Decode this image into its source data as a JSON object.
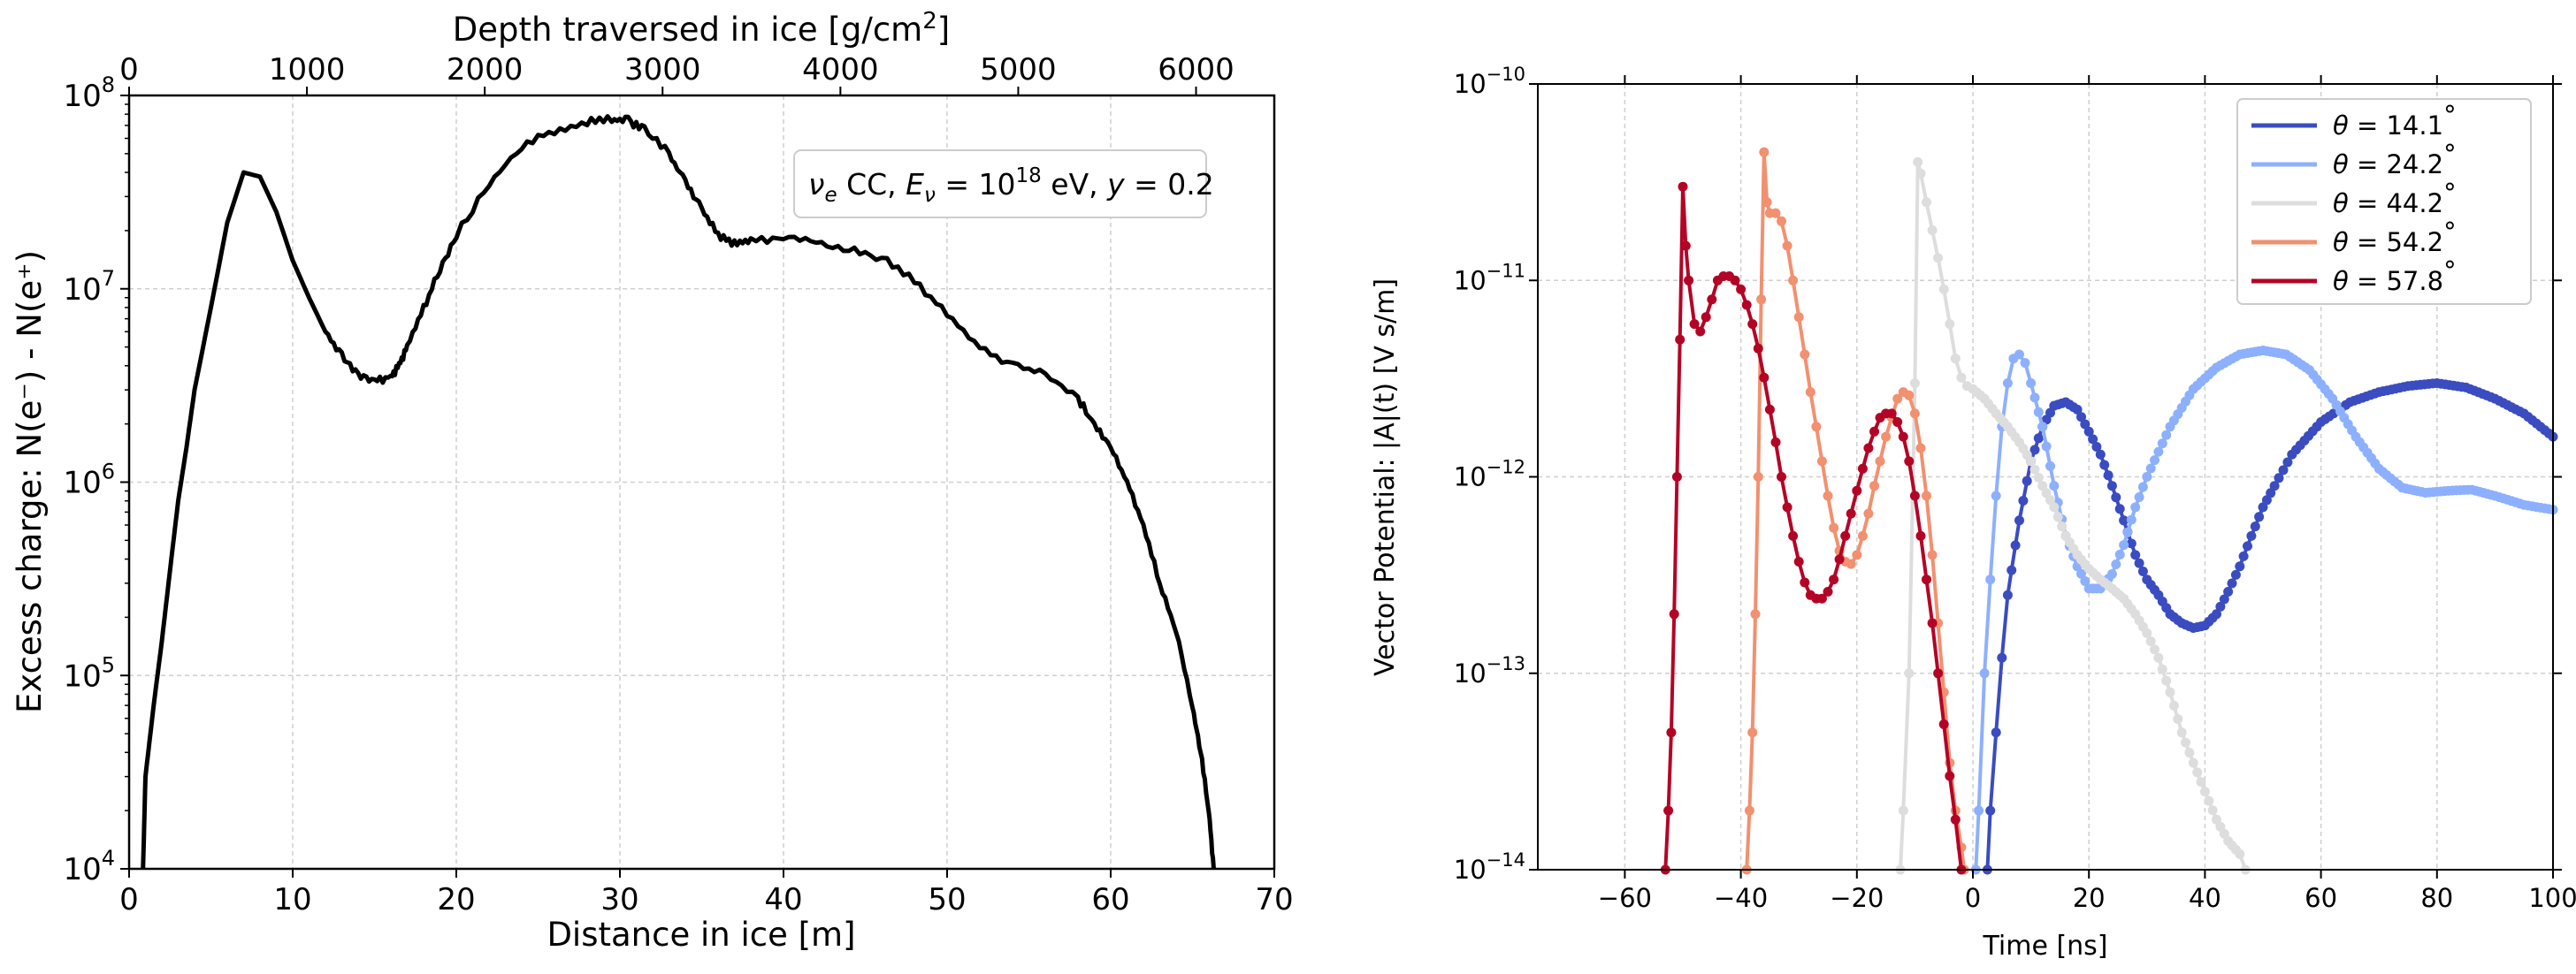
{
  "chart_data": [
    {
      "type": "line",
      "title": "",
      "xlabel": "Distance in ice [m]",
      "ylabel": "Excess charge: N(e⁻) - N(e⁺)",
      "top_xlabel": "Depth traversed in ice [g/cm²]",
      "xlim": [
        0,
        70
      ],
      "ylim": [
        10000,
        100000000
      ],
      "yscale": "log",
      "grid": true,
      "x_ticks": [
        0,
        10,
        20,
        30,
        40,
        50,
        60,
        70
      ],
      "x_tick_labels": [
        "0",
        "10",
        "20",
        "30",
        "40",
        "50",
        "60",
        "70"
      ],
      "y_ticks": [
        10000,
        100000,
        1000000,
        10000000,
        100000000
      ],
      "y_tick_labels": [
        {
          "base": "10",
          "exp": "4"
        },
        {
          "base": "10",
          "exp": "5"
        },
        {
          "base": "10",
          "exp": "6"
        },
        {
          "base": "10",
          "exp": "7"
        },
        {
          "base": "10",
          "exp": "8"
        }
      ],
      "top_ticks_depth": [
        0,
        1000,
        2000,
        3000,
        4000,
        5000,
        6000
      ],
      "top_tick_labels": [
        "0",
        "1000",
        "2000",
        "3000",
        "4000",
        "5000",
        "6000"
      ],
      "depth_per_meter": 92,
      "annotation": {
        "nu": "ν",
        "nu_sub": "e",
        "text1": " CC, ",
        "E": "E",
        "E_sub": "ν",
        "eq": " = 10",
        "eexp": "18",
        "text2": " eV, ",
        "y": "y",
        "text3": " = 0.2"
      },
      "series": [
        {
          "name": "Excess charge",
          "color": "#000000",
          "x": [
            0.85,
            1.0,
            1.5,
            2.0,
            2.5,
            3.0,
            3.5,
            4.0,
            5.0,
            6.0,
            7.0,
            8.0,
            9.0,
            10.0,
            11.0,
            12.0,
            13.0,
            14.0,
            15.0,
            16.0,
            16.5,
            17.0,
            18.0,
            19.0,
            20.0,
            22.0,
            24.0,
            26.0,
            28.0,
            29.5,
            30.5,
            31.5,
            33.0,
            34.0,
            35.0,
            36.0,
            37.0,
            38.0,
            40.0,
            42.0,
            44.0,
            46.0,
            48.0,
            50.0,
            52.0,
            54.0,
            56.0,
            58.0,
            59.0,
            60.0,
            61.0,
            62.0,
            63.0,
            64.0,
            65.0,
            65.5,
            66.0,
            66.3
          ],
          "values": [
            10000,
            30000,
            70000,
            150000,
            350000,
            800000,
            1500000,
            3000000,
            8000000,
            22000000,
            40000000,
            38000000,
            25000000,
            14000000,
            9000000,
            6000000,
            4500000,
            3600000,
            3300000,
            3500000,
            4000000,
            5000000,
            8000000,
            12500000,
            19000000,
            35000000,
            54000000,
            66000000,
            73000000,
            75000000,
            74000000,
            67000000,
            50000000,
            36000000,
            26000000,
            19000000,
            17000000,
            17500000,
            18500000,
            17500000,
            16000000,
            14500000,
            11000000,
            7500000,
            5000000,
            4000000,
            3600000,
            2700000,
            2000000,
            1500000,
            1000000,
            600000,
            300000,
            170000,
            70000,
            40000,
            20000,
            10000
          ]
        }
      ]
    },
    {
      "type": "line",
      "title": "",
      "xlabel": "Time [ns]",
      "ylabel": "Vector Potential: |A|(t) [V s/m]",
      "xlim": [
        -75,
        100
      ],
      "ylim": [
        1e-14,
        1e-10
      ],
      "yscale": "log",
      "grid": true,
      "x_ticks": [
        -60,
        -40,
        -20,
        0,
        20,
        40,
        60,
        80,
        100
      ],
      "x_tick_labels": [
        "−60",
        "−40",
        "−20",
        "0",
        "20",
        "40",
        "60",
        "80",
        "100"
      ],
      "y_ticks": [
        1e-14,
        1e-13,
        1e-12,
        1e-11,
        1e-10
      ],
      "y_tick_labels": [
        {
          "base": "10",
          "exp": "−14"
        },
        {
          "base": "10",
          "exp": "−13"
        },
        {
          "base": "10",
          "exp": "−12"
        },
        {
          "base": "10",
          "exp": "−11"
        },
        {
          "base": "10",
          "exp": "−10"
        }
      ],
      "legend_position": "top-right",
      "series": [
        {
          "name": "θ = 14.1°",
          "theta": "θ",
          "value_label": " = 14.1",
          "deg": "°",
          "color": "#3a4cc0",
          "x": [
            2.5,
            3,
            4,
            5,
            6,
            8,
            10,
            12,
            14,
            16,
            18,
            20,
            22,
            24,
            26,
            28,
            30,
            32,
            34,
            36,
            38,
            40,
            42,
            44,
            46,
            48,
            50,
            52,
            55,
            60,
            65,
            70,
            75,
            80,
            85,
            90,
            95,
            100
          ],
          "values": [
            1e-14,
            2e-14,
            5e-14,
            1.2e-13,
            2.5e-13,
            6e-13,
            1.2e-12,
            1.8e-12,
            2.3e-12,
            2.4e-12,
            2.2e-12,
            1.7e-12,
            1.3e-12,
            9e-13,
            6e-13,
            4e-13,
            3e-13,
            2.5e-13,
            2e-13,
            1.8e-13,
            1.7e-13,
            1.75e-13,
            2e-13,
            2.6e-13,
            3.5e-13,
            5e-13,
            7e-13,
            9e-13,
            1.3e-12,
            1.9e-12,
            2.4e-12,
            2.7e-12,
            2.9e-12,
            3e-12,
            2.85e-12,
            2.5e-12,
            2.1e-12,
            1.6e-12
          ]
        },
        {
          "name": "θ = 24.2°",
          "theta": "θ",
          "value_label": " = 24.2",
          "deg": "°",
          "color": "#8db0fe",
          "x": [
            0.5,
            1,
            2,
            3,
            4,
            5,
            6,
            7,
            8,
            9,
            10,
            12,
            14,
            16,
            18,
            20,
            22,
            24,
            26,
            28,
            30,
            34,
            38,
            42,
            46,
            50,
            54,
            58,
            62,
            66,
            70,
            74,
            78,
            82,
            86,
            90,
            95,
            100
          ],
          "values": [
            1e-14,
            2e-14,
            1e-13,
            3e-13,
            8e-13,
            1.8e-12,
            3e-12,
            4e-12,
            4.2e-12,
            3.8e-12,
            3e-12,
            1.8e-12,
            9e-13,
            5e-13,
            3.5e-13,
            2.7e-13,
            2.7e-13,
            3.2e-13,
            4.5e-13,
            7e-13,
            1e-12,
            1.8e-12,
            2.8e-12,
            3.6e-12,
            4.2e-12,
            4.4e-12,
            4.2e-12,
            3.5e-12,
            2.5e-12,
            1.6e-12,
            1.1e-12,
            8.8e-13,
            8.3e-13,
            8.5e-13,
            8.6e-13,
            8e-13,
            7.2e-13,
            6.8e-13
          ]
        },
        {
          "name": "θ = 44.2°",
          "theta": "θ",
          "value_label": " = 44.2",
          "deg": "°",
          "color": "#dddddd",
          "x": [
            -12.5,
            -12,
            -11,
            -10,
            -9.5,
            -9,
            -8,
            -7,
            -6,
            -5,
            -4,
            -3,
            -2,
            -1,
            0,
            2,
            4,
            6,
            8,
            10,
            12,
            14,
            16,
            18,
            20,
            22,
            24,
            26,
            28,
            30,
            32,
            34,
            36,
            38,
            40,
            42,
            44,
            46,
            47
          ],
          "values": [
            1e-14,
            2e-14,
            1e-13,
            3e-12,
            4e-11,
            3.5e-11,
            2.5e-11,
            1.8e-11,
            1.3e-11,
            9e-12,
            6e-12,
            4e-12,
            3.2e-12,
            2.9e-12,
            2.8e-12,
            2.5e-12,
            2.1e-12,
            1.8e-12,
            1.5e-12,
            1.2e-12,
            9e-13,
            7e-13,
            5e-13,
            4e-13,
            3.4e-13,
            3e-13,
            2.7e-13,
            2.4e-13,
            2e-13,
            1.6e-13,
            1.2e-13,
            8e-14,
            5e-14,
            3.5e-14,
            2.5e-14,
            1.8e-14,
            1.4e-14,
            1.2e-14,
            1e-14
          ]
        },
        {
          "name": "θ = 54.2°",
          "theta": "θ",
          "value_label": " = 54.2",
          "deg": "°",
          "color": "#f2906f",
          "x": [
            -39,
            -38.5,
            -38,
            -37.5,
            -37,
            -36.5,
            -36,
            -35.5,
            -35,
            -34,
            -33,
            -32,
            -31,
            -30,
            -29,
            -28,
            -27,
            -26,
            -25,
            -24,
            -23,
            -22,
            -21,
            -20,
            -19,
            -18,
            -17,
            -16,
            -15,
            -14,
            -13,
            -12,
            -11,
            -10,
            -9,
            -8,
            -7,
            -6,
            -5,
            -4,
            -3,
            -2,
            -1.5
          ],
          "values": [
            1e-14,
            2e-14,
            5e-14,
            2e-13,
            1e-12,
            8e-12,
            4.5e-11,
            2.5e-11,
            2.2e-11,
            2.2e-11,
            2e-11,
            1.5e-11,
            1e-11,
            6.5e-12,
            4.2e-12,
            2.7e-12,
            1.8e-12,
            1.2e-12,
            8e-13,
            5.5e-13,
            4.2e-13,
            3.7e-13,
            3.6e-13,
            4e-13,
            5e-13,
            6.5e-13,
            9e-13,
            1.2e-12,
            1.6e-12,
            2e-12,
            2.5e-12,
            2.7e-12,
            2.6e-12,
            2.1e-12,
            1.4e-12,
            8e-13,
            4e-13,
            1.8e-13,
            8e-14,
            3.5e-14,
            2e-14,
            1.3e-14,
            1e-14
          ]
        },
        {
          "name": "θ = 57.8°",
          "theta": "θ",
          "value_label": " = 57.8",
          "deg": "°",
          "color": "#b40426",
          "x": [
            -53,
            -52.5,
            -52,
            -51.5,
            -51,
            -50.5,
            -50,
            -49.5,
            -49,
            -48,
            -47,
            -46,
            -45,
            -44,
            -43,
            -42,
            -41,
            -40,
            -39,
            -38,
            -37,
            -36,
            -35,
            -34,
            -33,
            -32,
            -31,
            -30,
            -29,
            -28,
            -27,
            -26,
            -25,
            -24,
            -23,
            -22,
            -21,
            -20,
            -19,
            -18,
            -17,
            -16,
            -15,
            -14,
            -13,
            -12,
            -11,
            -10,
            -9,
            -8,
            -7,
            -6,
            -5,
            -4,
            -3,
            -2
          ],
          "values": [
            1e-14,
            2e-14,
            5e-14,
            2e-13,
            1e-12,
            5e-12,
            3e-11,
            1.5e-11,
            1e-11,
            6e-12,
            5.5e-12,
            6.5e-12,
            8e-12,
            1e-11,
            1.05e-11,
            1.05e-11,
            1e-11,
            9e-12,
            7.5e-12,
            6e-12,
            4.5e-12,
            3.2e-12,
            2.2e-12,
            1.5e-12,
            1e-12,
            7e-13,
            5e-13,
            3.7e-13,
            2.9e-13,
            2.5e-13,
            2.4e-13,
            2.4e-13,
            2.6e-13,
            3e-13,
            3.8e-13,
            5e-13,
            6.5e-13,
            8.5e-13,
            1.1e-12,
            1.4e-12,
            1.7e-12,
            2e-12,
            2.1e-12,
            2.1e-12,
            1.9e-12,
            1.6e-12,
            1.2e-12,
            8e-13,
            5e-13,
            3e-13,
            1.8e-13,
            1e-13,
            5.5e-14,
            3e-14,
            1.8e-14,
            1e-14
          ]
        }
      ]
    }
  ]
}
